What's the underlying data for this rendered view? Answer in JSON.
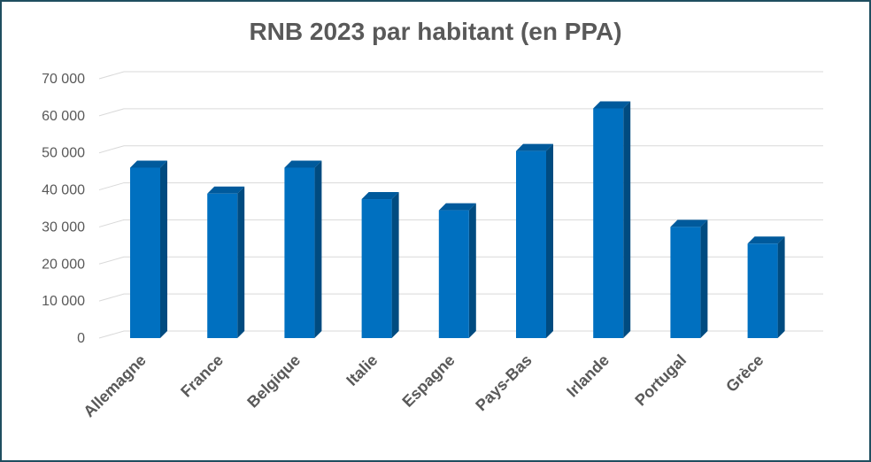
{
  "chart_data": {
    "type": "bar",
    "title": "RNB 2023 par habitant (en PPA)",
    "categories": [
      "Allemagne",
      "France",
      "Belgique",
      "Italie",
      "Espagne",
      "Pays-Bas",
      "Irlande",
      "Portugal",
      "Grèce"
    ],
    "values": [
      46000,
      39000,
      46000,
      37500,
      34500,
      50500,
      62000,
      30000,
      25500
    ],
    "ylim": [
      0,
      70000
    ],
    "yticks": [
      0,
      10000,
      20000,
      30000,
      40000,
      50000,
      60000,
      70000
    ],
    "ytick_labels": [
      "0",
      "10 000",
      "20 000",
      "30 000",
      "40 000",
      "50 000",
      "60 000",
      "70 000"
    ],
    "grid": true,
    "bar_color": "#0070c0",
    "bar_side_color": "#004b80",
    "bar_top_color": "#005a9c"
  }
}
